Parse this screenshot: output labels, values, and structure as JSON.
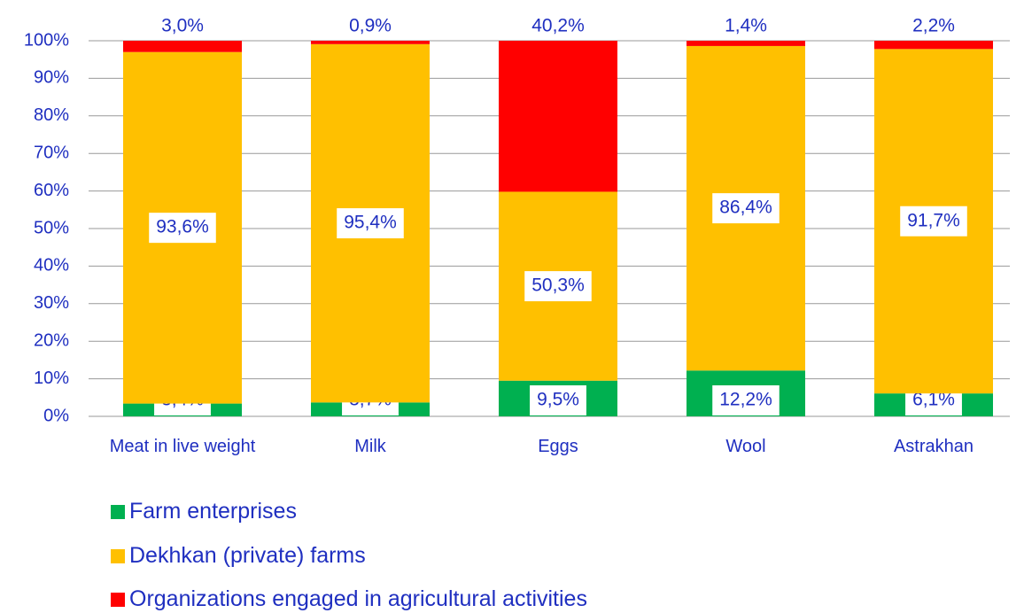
{
  "chart_data": {
    "type": "stacked_bar_100",
    "categories": [
      "Meat in live weight",
      "Milk",
      "Eggs",
      "Wool",
      "Astrakhan"
    ],
    "series": [
      {
        "name": "Farm enterprises",
        "color": "#00b050",
        "values": [
          3.4,
          3.7,
          9.5,
          12.2,
          6.1
        ],
        "value_labels": [
          "3,4%",
          "3,7%",
          "9,5%",
          "12,2%",
          "6,1%"
        ]
      },
      {
        "name": "Dekhkan (private) farms",
        "color": "#ffc000",
        "values": [
          93.6,
          95.4,
          50.3,
          86.4,
          91.7
        ],
        "value_labels": [
          "93,6%",
          "95,4%",
          "50,3%",
          "86,4%",
          "91,7%"
        ]
      },
      {
        "name": "Organizations engaged in agricultural activities",
        "color": "#ff0000",
        "values": [
          3.0,
          0.9,
          40.2,
          1.4,
          2.2
        ],
        "value_labels": [
          "3,0%",
          "0,9%",
          "40,2%",
          "1,4%",
          "2,2%"
        ]
      }
    ],
    "ylim": [
      0,
      100
    ],
    "yticks": [
      {
        "value": 0,
        "label": "0%"
      },
      {
        "value": 10,
        "label": "10%"
      },
      {
        "value": 20,
        "label": "20%"
      },
      {
        "value": 30,
        "label": "30%"
      },
      {
        "value": 40,
        "label": "40%"
      },
      {
        "value": 50,
        "label": "50%"
      },
      {
        "value": 60,
        "label": "60%"
      },
      {
        "value": 70,
        "label": "70%"
      },
      {
        "value": 80,
        "label": "80%"
      },
      {
        "value": 90,
        "label": "90%"
      },
      {
        "value": 100,
        "label": "100%"
      }
    ],
    "grid": true
  }
}
